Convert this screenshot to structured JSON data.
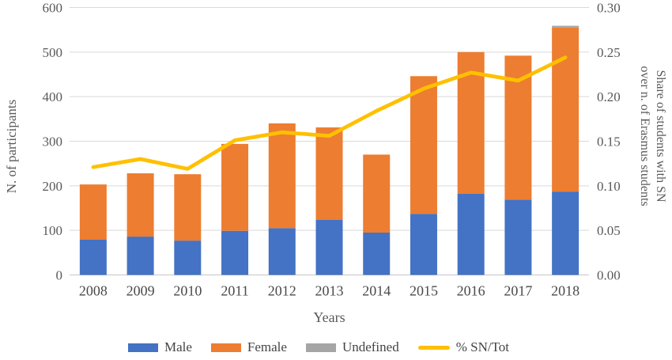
{
  "chart_data": {
    "type": "combo-stacked-bar-line",
    "categories": [
      "2008",
      "2009",
      "2010",
      "2011",
      "2012",
      "2013",
      "2014",
      "2015",
      "2016",
      "2017",
      "2018"
    ],
    "series": [
      {
        "name": "Male",
        "type": "bar",
        "axis": "left",
        "color": "#4472C4",
        "values": [
          79,
          86,
          77,
          99,
          105,
          124,
          95,
          137,
          182,
          169,
          187
        ]
      },
      {
        "name": "Female",
        "type": "bar",
        "axis": "left",
        "color": "#ED7D31",
        "values": [
          124,
          142,
          149,
          195,
          235,
          207,
          175,
          309,
          318,
          323,
          368
        ]
      },
      {
        "name": "Undefined",
        "type": "bar",
        "axis": "left",
        "color": "#A5A5A5",
        "values": [
          0,
          0,
          0,
          0,
          0,
          0,
          0,
          0,
          0,
          0,
          4
        ]
      },
      {
        "name": "% SN/Tot",
        "type": "line",
        "axis": "right",
        "color": "#FFC000",
        "values": [
          0.121,
          0.13,
          0.119,
          0.151,
          0.16,
          0.156,
          0.184,
          0.209,
          0.227,
          0.218,
          0.244
        ]
      }
    ],
    "stacked_totals": [
      203,
      228,
      226,
      294,
      340,
      331,
      270,
      446,
      500,
      492,
      559
    ],
    "left_axis": {
      "title": "N. of participants",
      "min": 0,
      "max": 600,
      "step": 100,
      "tick_values": [
        0,
        100,
        200,
        300,
        400,
        500,
        600
      ],
      "tick_labels": [
        "0",
        "100",
        "200",
        "300",
        "400",
        "500",
        "600"
      ]
    },
    "right_axis": {
      "title_line1": "Share of students with SN",
      "title_line2": "over n. of Erasmus students",
      "min": 0,
      "max": 0.3,
      "step": 0.05,
      "tick_values": [
        0,
        0.05,
        0.1,
        0.15,
        0.2,
        0.25,
        0.3
      ],
      "tick_labels": [
        "0.00",
        "0.05",
        "0.10",
        "0.15",
        "0.20",
        "0.25",
        "0.30"
      ]
    },
    "x_axis": {
      "title": "Years"
    },
    "legend_position": "bottom",
    "grid": true,
    "colors": {
      "gridline": "#D9D9D9",
      "axis_line": "#C6C6C6",
      "tick_text": "#595959",
      "label_text": "#4a4a4a"
    }
  }
}
